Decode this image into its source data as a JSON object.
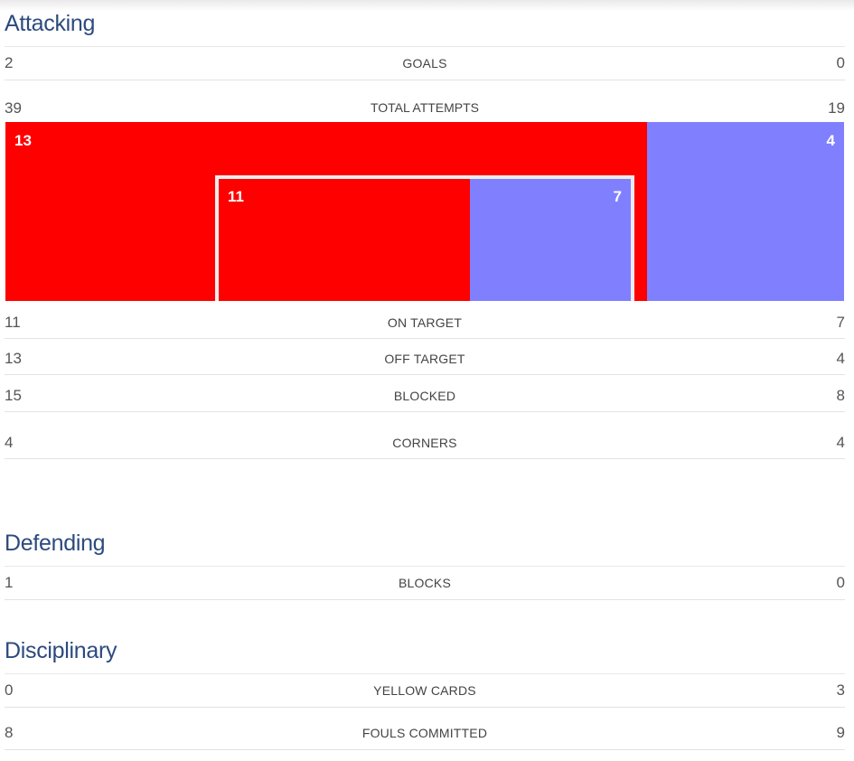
{
  "colors": {
    "home": "#ff0000",
    "away": "#8080ff",
    "title": "#2c4a7e"
  },
  "attacking": {
    "title": "Attacking",
    "goals": {
      "label": "GOALS",
      "home": "2",
      "away": "0"
    },
    "total_attempts": {
      "label": "TOTAL ATTEMPTS",
      "home": "39",
      "away": "19"
    },
    "viz": {
      "outer_home": "13",
      "outer_away": "4",
      "inner_home": "11",
      "inner_away": "7",
      "outer_home_share": 0.765,
      "inner_home_share": 0.61
    },
    "on_target": {
      "label": "ON TARGET",
      "home": "11",
      "away": "7"
    },
    "off_target": {
      "label": "OFF TARGET",
      "home": "13",
      "away": "4"
    },
    "blocked": {
      "label": "BLOCKED",
      "home": "15",
      "away": "8"
    },
    "corners": {
      "label": "CORNERS",
      "home": "4",
      "away": "4"
    }
  },
  "defending": {
    "title": "Defending",
    "blocks": {
      "label": "BLOCKS",
      "home": "1",
      "away": "0"
    }
  },
  "disciplinary": {
    "title": "Disciplinary",
    "yellow_cards": {
      "label": "YELLOW CARDS",
      "home": "0",
      "away": "3"
    },
    "fouls_committed": {
      "label": "FOULS COMMITTED",
      "home": "8",
      "away": "9"
    }
  }
}
